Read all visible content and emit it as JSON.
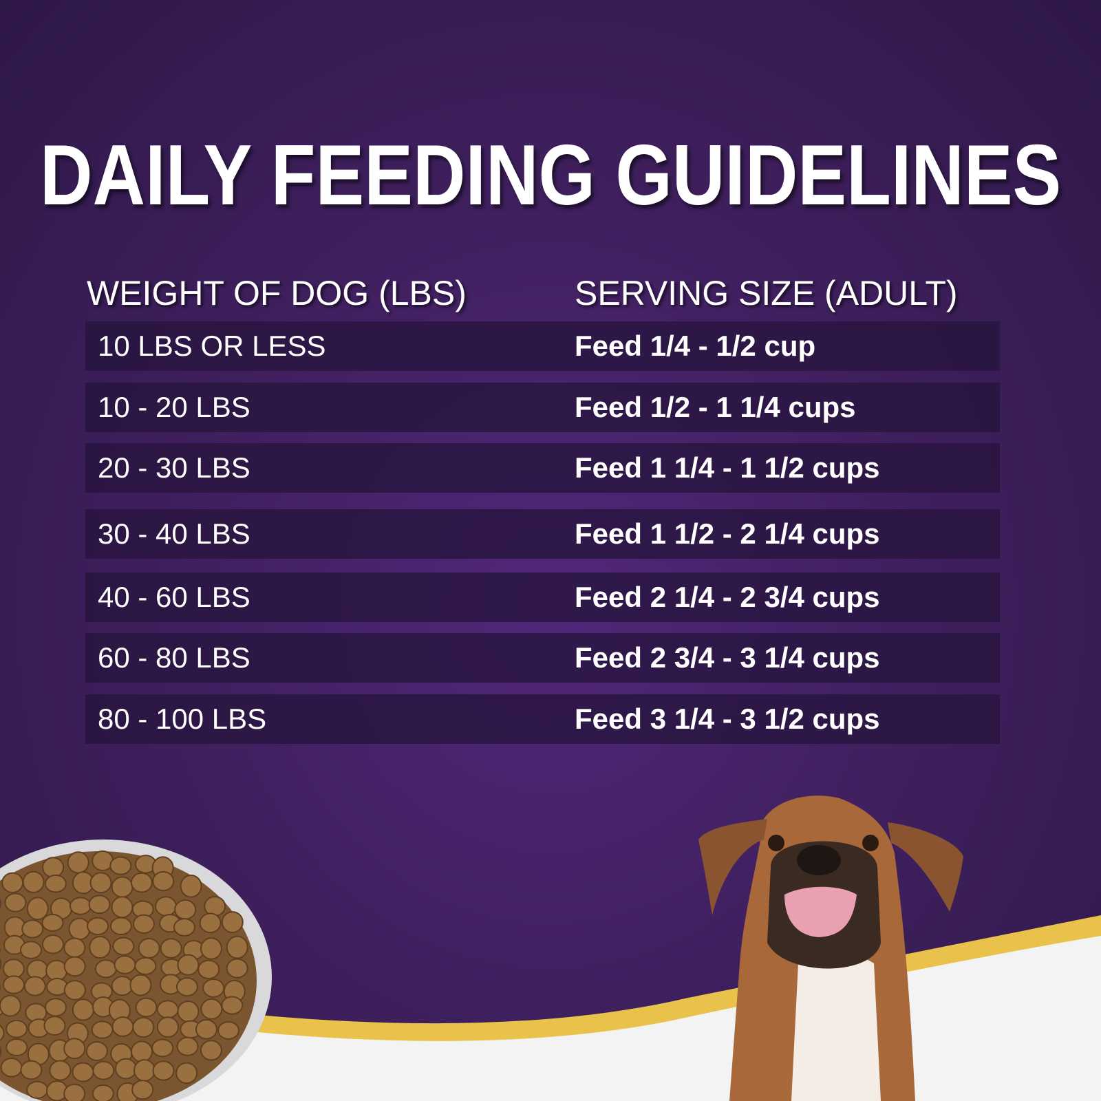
{
  "title": "DAILY FEEDING GUIDELINES",
  "table": {
    "headers": [
      "WEIGHT OF DOG (LBS)",
      "SERVING SIZE (ADULT)"
    ],
    "rows": [
      {
        "weight": "10 LBS OR LESS",
        "serving": "Feed 1/4 - 1/2 cup"
      },
      {
        "weight": "10 - 20 LBS",
        "serving": "Feed 1/2 - 1 1/4 cups"
      },
      {
        "weight": "20 - 30 LBS",
        "serving": "Feed 1 1/4 - 1 1/2 cups"
      },
      {
        "weight": "30 - 40 LBS",
        "serving": "Feed 1 1/2 - 2 1/4 cups"
      },
      {
        "weight": "40 - 60 LBS",
        "serving": "Feed 2 1/4 - 2 3/4 cups"
      },
      {
        "weight": "60 - 80 LBS",
        "serving": "Feed 2 3/4 - 3 1/4 cups"
      },
      {
        "weight": "80 - 100 LBS",
        "serving": "Feed 3 1/4 - 3 1/2 cups"
      }
    ]
  },
  "colors": {
    "background": "#40205f",
    "accent_gold": "#f2d35c",
    "row": "#2b1747",
    "floor": "#f3f3f4"
  }
}
